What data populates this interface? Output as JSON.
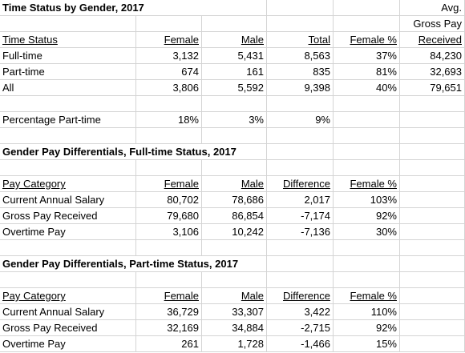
{
  "sheet": {
    "rows": [
      [
        "Time Status by Gender, 2017",
        null,
        null,
        null,
        null,
        "Avg."
      ],
      [
        null,
        null,
        null,
        null,
        null,
        "Gross Pay"
      ],
      [
        "Time Status",
        "Female",
        "Male",
        "Total",
        "Female %",
        "Received"
      ],
      [
        "Full-time",
        "3,132",
        "5,431",
        "8,563",
        "37%",
        "84,230"
      ],
      [
        "Part-time",
        "674",
        "161",
        "835",
        "81%",
        "32,693"
      ],
      [
        "All",
        "3,806",
        "5,592",
        "9,398",
        "40%",
        "79,651"
      ],
      [
        null,
        null,
        null,
        null,
        null,
        null
      ],
      [
        "Percentage Part-time",
        "18%",
        "3%",
        "9%",
        null,
        null
      ],
      [
        null,
        null,
        null,
        null,
        null,
        null
      ],
      [
        "Gender Pay Differentials, Full-time Status, 2017",
        null,
        null,
        null,
        null,
        null
      ],
      [
        null,
        null,
        null,
        null,
        null,
        null
      ],
      [
        "Pay Category",
        "Female",
        "Male",
        "Difference",
        "Female %",
        null
      ],
      [
        "Current Annual Salary",
        "80,702",
        "78,686",
        "2,017",
        "103%",
        null
      ],
      [
        "Gross Pay Received",
        "79,680",
        "86,854",
        "-7,174",
        "92%",
        null
      ],
      [
        "Overtime Pay",
        "3,106",
        "10,242",
        "-7,136",
        "30%",
        null
      ],
      [
        null,
        null,
        null,
        null,
        null,
        null
      ],
      [
        "Gender Pay Differentials, Part-time Status, 2017",
        null,
        null,
        null,
        null,
        null
      ],
      [
        null,
        null,
        null,
        null,
        null,
        null
      ],
      [
        "Pay Category",
        "Female",
        "Male",
        "Difference",
        "Female %",
        null
      ],
      [
        "Current Annual Salary",
        "36,729",
        "33,307",
        "3,422",
        "110%",
        null
      ],
      [
        "Gross Pay Received",
        "32,169",
        "34,884",
        "-2,715",
        "92%",
        null
      ],
      [
        "Overtime Pay",
        "261",
        "1,728",
        "-1,466",
        "15%",
        null
      ]
    ]
  }
}
